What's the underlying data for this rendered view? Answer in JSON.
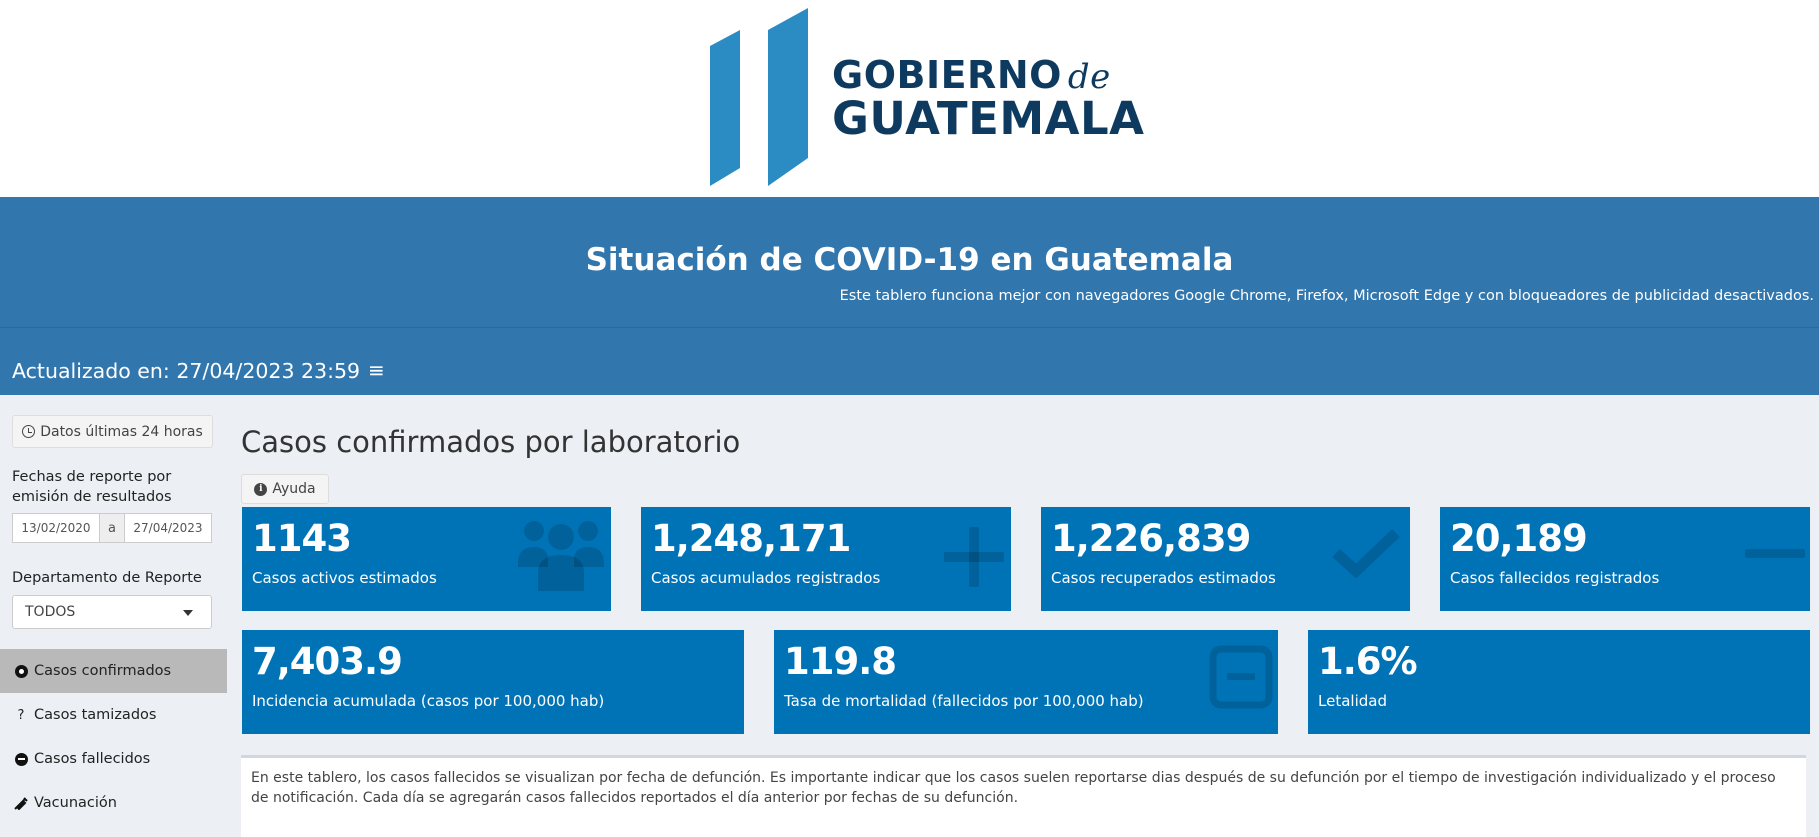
{
  "logo": {
    "line1": "GOBIERNO",
    "de": "de",
    "line2": "GUATEMALA",
    "color": "#0f3a5f",
    "accent": "#2b8cc4"
  },
  "banner": {
    "title": "Situación de COVID-19 en Guatemala",
    "subtitle": "Este tablero funciona mejor con navegadores Google Chrome, Firefox, Microsoft Edge y con bloqueadores de publicidad desactivados."
  },
  "header": {
    "updated": "Actualizado en: 27/04/2023 23:59",
    "menu_icon": "hamburger-icon"
  },
  "sidebar": {
    "last24_label": "Datos últimas 24 horas",
    "date_label": "Fechas de reporte por emisión de resultados",
    "date_start": "13/02/2020",
    "date_sep": "a",
    "date_end": "27/04/2023",
    "dept_label": "Departamento de Reporte",
    "dept_value": "TODOS",
    "nav": [
      {
        "label": "Casos confirmados",
        "icon": "biohazard-icon",
        "active": true
      },
      {
        "label": "Casos tamizados",
        "icon": "question-icon",
        "active": false
      },
      {
        "label": "Casos fallecidos",
        "icon": "minus-circle-icon",
        "active": false
      },
      {
        "label": "Vacunación",
        "icon": "syringe-icon",
        "active": false
      }
    ]
  },
  "main": {
    "title": "Casos confirmados por laboratorio",
    "help_label": "Ayuda",
    "boxes_row1": [
      {
        "value": "1143",
        "label": "Casos activos estimados",
        "icon": "users-icon"
      },
      {
        "value": "1,248,171",
        "label": "Casos acumulados registrados",
        "icon": "plus-icon"
      },
      {
        "value": "1,226,839",
        "label": "Casos recuperados estimados",
        "icon": "check-icon"
      },
      {
        "value": "20,189",
        "label": "Casos fallecidos registrados",
        "icon": "minus-icon"
      }
    ],
    "boxes_row2": [
      {
        "value": "7,403.9",
        "label": "Incidencia acumulada (casos por 100,000 hab)",
        "icon": ""
      },
      {
        "value": "119.8",
        "label": "Tasa de mortalidad (fallecidos por 100,000 hab)",
        "icon": "minus-square-icon"
      },
      {
        "value": "1.6%",
        "label": "Letalidad",
        "icon": ""
      }
    ],
    "note": "En este tablero, los casos fallecidos se visualizan por fecha de defunción. Es importante indicar que los casos suelen reportarse dias después de su defunción por el tiempo de investigación individualizado y el proceso de notificación. Cada día se agregarán casos fallecidos reportados el día anterior por fechas de su defunción."
  },
  "colors": {
    "banner": "#3176ad",
    "box": "#0073b7",
    "sidebar": "#ecf0f5",
    "active_nav": "#b9b9b9"
  }
}
